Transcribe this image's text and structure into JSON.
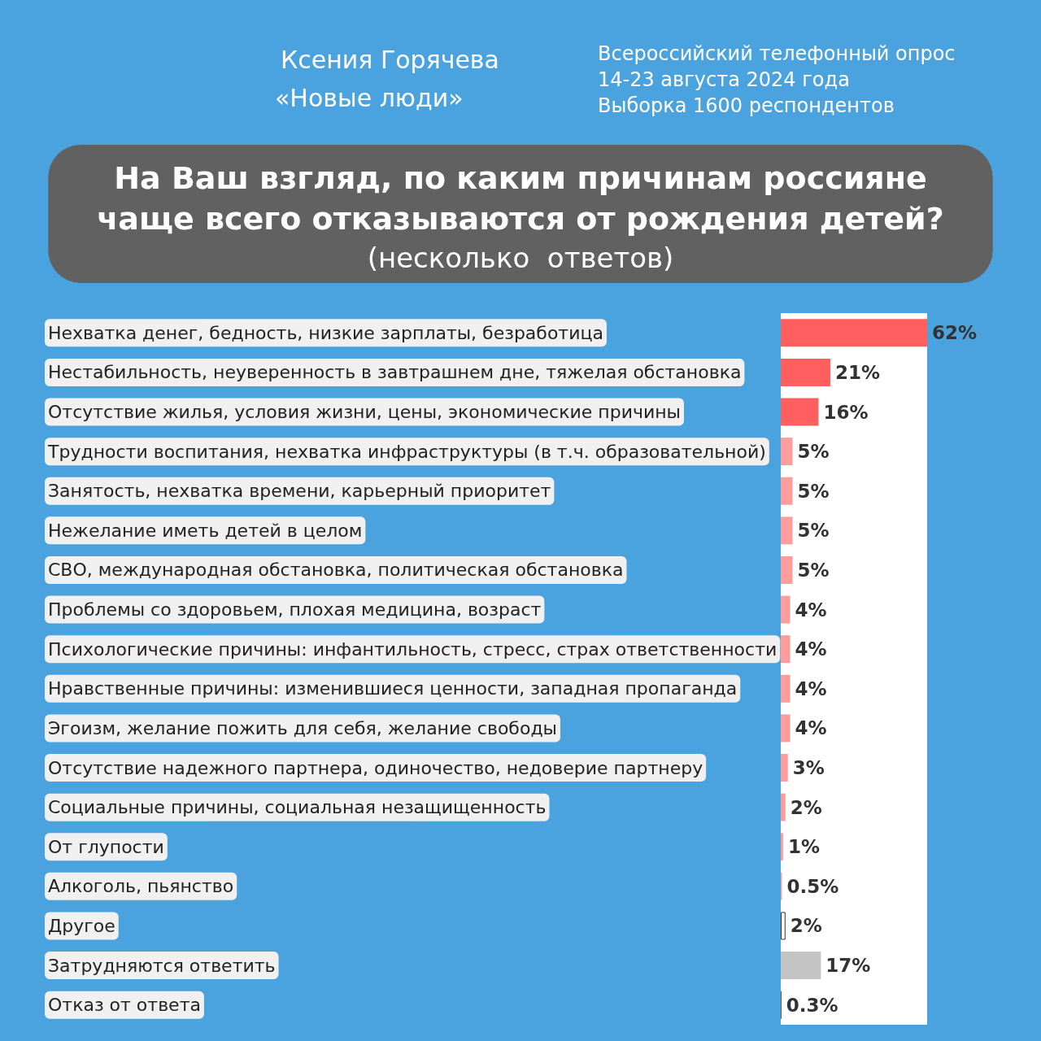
{
  "chart_data": {
    "type": "bar",
    "orientation": "horizontal",
    "title": "На Ваш взгляд, по каким причинам россияне\nчаще всего отказываются от рождения детей?",
    "subtitle": "(несколько  ответов)",
    "annotations": [
      "Ксения Горячева",
      "«Новые люди»",
      "Всероссийский телефонный опрос",
      "14-23 августа 2024 года",
      "Выборка 1600 респондентов"
    ],
    "categories": [
      "Нехватка денег, бедность, низкие зарплаты, безработица",
      "Нестабильность, неуверенность в завтрашнем дне, тяжелая обстановка",
      "Отсутствие жилья, условия жизни, цены, экономические причины",
      "Трудности воспитания, нехватка инфраструктуры (в т.ч. образовательной)",
      "Занятость, нехватка времени, карьерный приоритет",
      "Нежелание иметь детей в целом",
      "СВО, международная обстановка, политическая обстановка",
      "Проблемы со здоровьем, плохая медицина, возраст",
      "Психологические причины: инфантильность, стресс, страх ответственности",
      "Нравственные причины: изменившиеся ценности, западная пропаганда",
      "Эгоизм, желание пожить для себя, желание свободы",
      "Отсутствие надежного партнера, одиночество, недоверие партнеру",
      "Социальные причины, социальная незащищенность",
      "От глупости",
      "Алкоголь, пьянство",
      "Другое",
      "Затрудняются ответить",
      "Отказ от ответа"
    ],
    "values": [
      62,
      21,
      16,
      5,
      5,
      5,
      5,
      4,
      4,
      4,
      4,
      3,
      2,
      1,
      0.5,
      2,
      17,
      0.3
    ],
    "value_labels": [
      "62%",
      "21%",
      "16%",
      "5%",
      "5%",
      "5%",
      "5%",
      "4%",
      "4%",
      "4%",
      "4%",
      "3%",
      "2%",
      "1%",
      "0.5%",
      "2%",
      "17%",
      "0.3%"
    ],
    "colors": [
      "#ff5f5f",
      "#ff5f5f",
      "#ff5f5f",
      "#ff9c9c",
      "#ff9c9c",
      "#ff9c9c",
      "#ff9c9c",
      "#ff9c9c",
      "#ff9c9c",
      "#ff9c9c",
      "#ff9c9c",
      "#ff9c9c",
      "#ff9c9c",
      "#ff9c9c",
      "#ff9c9c",
      "#ffffff",
      "#c4c4c4",
      "#444444"
    ],
    "grid": false
  }
}
